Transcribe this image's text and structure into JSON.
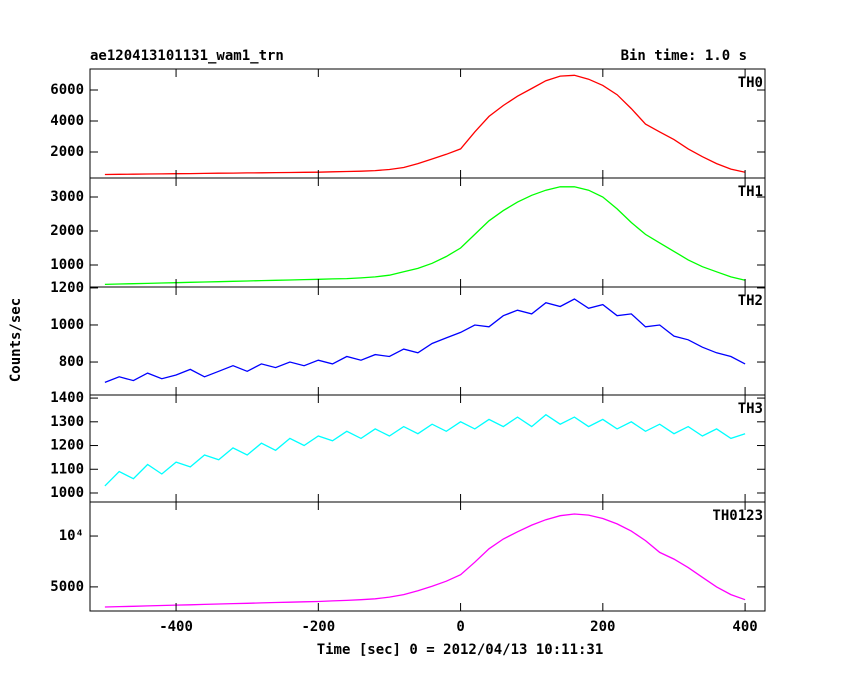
{
  "chart_data": {
    "type": "line",
    "title": "ae120413101131_wam1_trn",
    "subtitle": "Bin time: 1.0 s",
    "xlabel": "Time [sec] 0 = 2012/04/13 10:11:31",
    "ylabel": "Counts/sec",
    "xlim": [
      -521,
      428
    ],
    "xticks": [
      -400,
      -200,
      0,
      200,
      400
    ],
    "x": [
      -500,
      -480,
      -460,
      -440,
      -420,
      -400,
      -380,
      -360,
      -340,
      -320,
      -300,
      -280,
      -260,
      -240,
      -220,
      -200,
      -180,
      -160,
      -140,
      -120,
      -100,
      -80,
      -60,
      -40,
      -20,
      0,
      20,
      40,
      60,
      80,
      100,
      120,
      140,
      160,
      180,
      200,
      220,
      240,
      260,
      280,
      300,
      320,
      340,
      360,
      380,
      400
    ],
    "panels": [
      {
        "name": "TH0",
        "color": "#ff0000",
        "ylim": [
          323,
          7355
        ],
        "yticks": [
          2000,
          4000,
          6000
        ],
        "values": [
          550,
          560,
          570,
          580,
          590,
          600,
          610,
          620,
          630,
          640,
          650,
          660,
          670,
          680,
          690,
          700,
          720,
          740,
          760,
          800,
          870,
          1000,
          1250,
          1550,
          1850,
          2200,
          3300,
          4300,
          5000,
          5600,
          6100,
          6600,
          6900,
          6950,
          6700,
          6300,
          5700,
          4800,
          3800,
          3300,
          2800,
          2200,
          1700,
          1250,
          900,
          700
        ]
      },
      {
        "name": "TH1",
        "color": "#00ff00",
        "ylim": [
          353,
          3559
        ],
        "yticks": [
          1000,
          2000,
          3000
        ],
        "values": [
          430,
          440,
          450,
          460,
          470,
          480,
          490,
          500,
          510,
          520,
          530,
          540,
          550,
          560,
          570,
          580,
          590,
          600,
          620,
          650,
          700,
          800,
          900,
          1050,
          1250,
          1500,
          1900,
          2300,
          2600,
          2850,
          3050,
          3200,
          3300,
          3300,
          3200,
          3000,
          2650,
          2250,
          1900,
          1650,
          1400,
          1150,
          950,
          800,
          650,
          550
        ]
      },
      {
        "name": "TH2",
        "color": "#0000ff",
        "ylim": [
          622,
          1205
        ],
        "yticks": [
          800,
          1000,
          1200
        ],
        "values": [
          690,
          720,
          700,
          740,
          710,
          730,
          760,
          720,
          750,
          780,
          750,
          790,
          770,
          800,
          780,
          810,
          790,
          830,
          810,
          840,
          830,
          870,
          850,
          900,
          930,
          960,
          1000,
          990,
          1050,
          1080,
          1060,
          1120,
          1100,
          1140,
          1090,
          1110,
          1050,
          1060,
          990,
          1000,
          940,
          920,
          880,
          850,
          830,
          790
        ]
      },
      {
        "name": "TH3",
        "color": "#00ffff",
        "ylim": [
          962,
          1413
        ],
        "yticks": [
          1000,
          1100,
          1200,
          1300,
          1400
        ],
        "values": [
          1030,
          1090,
          1060,
          1120,
          1080,
          1130,
          1110,
          1160,
          1140,
          1190,
          1160,
          1210,
          1180,
          1230,
          1200,
          1240,
          1220,
          1260,
          1230,
          1270,
          1240,
          1280,
          1250,
          1290,
          1260,
          1300,
          1270,
          1310,
          1280,
          1320,
          1280,
          1330,
          1290,
          1320,
          1280,
          1310,
          1270,
          1300,
          1260,
          1290,
          1250,
          1280,
          1240,
          1270,
          1230,
          1250
        ]
      },
      {
        "name": "TH0123",
        "color": "#ff00ff",
        "ylim": [
          3600,
          15900
        ],
        "log": true,
        "yticks": [
          5000,
          {
            "value": 10000,
            "label": "10⁴"
          }
        ],
        "values": [
          3800,
          3820,
          3840,
          3860,
          3880,
          3900,
          3920,
          3940,
          3960,
          3980,
          4000,
          4020,
          4040,
          4060,
          4080,
          4100,
          4130,
          4160,
          4200,
          4250,
          4350,
          4500,
          4750,
          5050,
          5400,
          5900,
          7000,
          8400,
          9600,
          10600,
          11600,
          12500,
          13200,
          13500,
          13300,
          12700,
          11800,
          10700,
          9400,
          8000,
          7300,
          6500,
          5700,
          5000,
          4500,
          4200
        ]
      }
    ]
  }
}
